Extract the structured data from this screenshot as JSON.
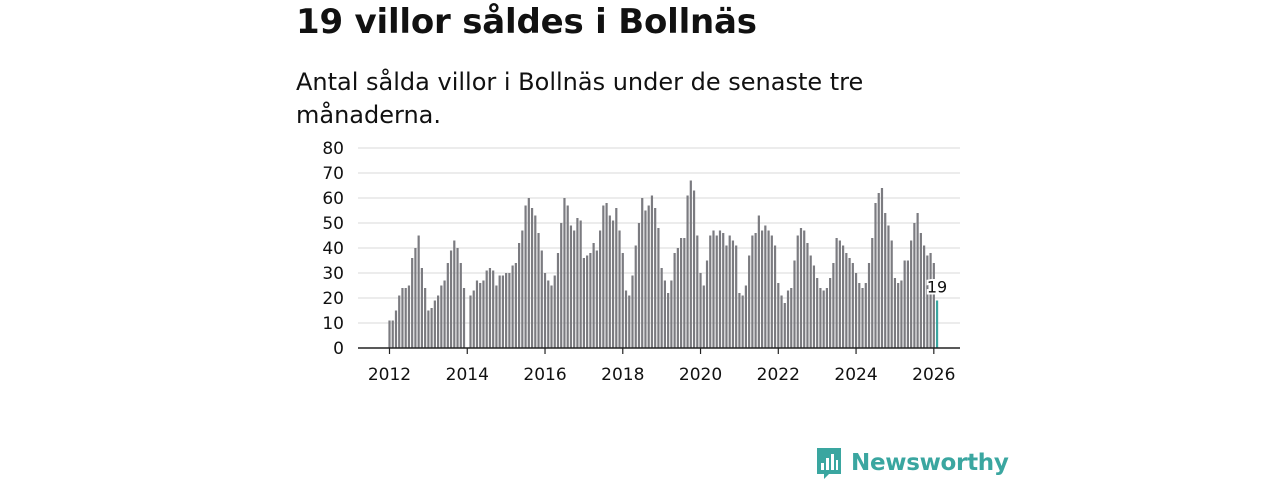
{
  "title": "19 villor såldes i Bollnäs",
  "subtitle": "Antal sålda villor i Bollnäs under de senaste tre månaderna.",
  "brand": {
    "name": "Newsworthy",
    "color": "#3aa6a0",
    "icon": "newsworthy-logo-icon"
  },
  "colors": {
    "bar": "#7b7b80",
    "highlight": "#3aa6a0",
    "grid": "#d9d9d9",
    "axis": "#222222"
  },
  "chart_data": {
    "type": "bar",
    "start": {
      "year": 2012,
      "month": 1
    },
    "ylim": [
      0,
      80
    ],
    "yticks": [
      "0",
      "10",
      "20",
      "30",
      "40",
      "50",
      "60",
      "70",
      "80"
    ],
    "xticks": [
      "2012",
      "2014",
      "2016",
      "2018",
      "2020",
      "2022",
      "2024",
      "2026"
    ],
    "xlabel": "",
    "ylabel": "",
    "highlight_label": "19",
    "values": [
      11,
      11,
      15,
      21,
      24,
      24,
      25,
      36,
      40,
      45,
      32,
      24,
      15,
      16,
      19,
      21,
      25,
      27,
      34,
      39,
      43,
      40,
      34,
      24,
      0,
      21,
      23,
      27,
      26,
      27,
      31,
      32,
      31,
      25,
      29,
      29,
      30,
      30,
      33,
      34,
      42,
      47,
      57,
      60,
      56,
      53,
      46,
      39,
      30,
      27,
      25,
      29,
      38,
      50,
      60,
      57,
      49,
      47,
      52,
      51,
      36,
      37,
      38,
      42,
      39,
      47,
      57,
      58,
      53,
      51,
      56,
      47,
      38,
      23,
      21,
      29,
      41,
      50,
      60,
      55,
      57,
      61,
      56,
      48,
      32,
      27,
      22,
      27,
      38,
      40,
      44,
      44,
      61,
      67,
      63,
      45,
      30,
      25,
      35,
      45,
      47,
      45,
      47,
      46,
      41,
      45,
      43,
      41,
      22,
      21,
      25,
      37,
      45,
      46,
      53,
      47,
      49,
      47,
      45,
      41,
      26,
      21,
      18,
      23,
      24,
      35,
      45,
      48,
      47,
      42,
      37,
      33,
      28,
      24,
      23,
      24,
      28,
      34,
      44,
      43,
      41,
      38,
      36,
      34,
      30,
      26,
      24,
      26,
      34,
      44,
      58,
      62,
      64,
      54,
      49,
      43,
      28,
      26,
      27,
      35,
      35,
      43,
      50,
      54,
      46,
      41,
      37,
      38,
      34,
      19
    ]
  }
}
